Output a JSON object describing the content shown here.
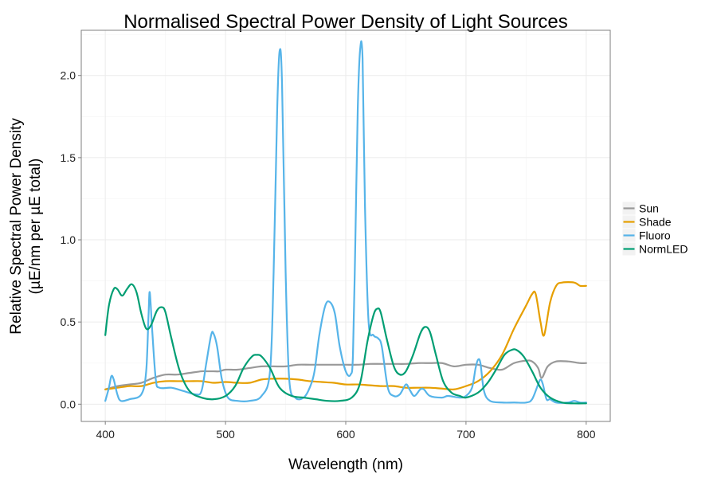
{
  "chart_data": {
    "type": "line",
    "title": "Normalised Spectral Power Density of Light Sources",
    "xlabel": "Wavelength (nm)",
    "ylabel_line1": "Relative Spectral Power Density",
    "ylabel_line2": "(µE/nm per µE total)",
    "xlim": [
      380,
      820
    ],
    "ylim": [
      -0.105,
      2.275
    ],
    "x_ticks": [
      400,
      500,
      600,
      700,
      800
    ],
    "y_ticks": [
      0.0,
      0.5,
      1.0,
      1.5,
      2.0
    ],
    "x_tick_labels": [
      "400",
      "500",
      "600",
      "700",
      "800"
    ],
    "y_tick_labels": [
      "0.0",
      "0.5",
      "1.0",
      "1.5",
      "2.0"
    ],
    "grid": true,
    "legend_position": "right",
    "series": [
      {
        "name": "Sun",
        "color": "#999999",
        "points": [
          [
            400,
            0.09
          ],
          [
            410,
            0.11
          ],
          [
            420,
            0.12
          ],
          [
            430,
            0.13
          ],
          [
            440,
            0.16
          ],
          [
            450,
            0.18
          ],
          [
            460,
            0.18
          ],
          [
            470,
            0.19
          ],
          [
            480,
            0.2
          ],
          [
            485,
            0.2
          ],
          [
            490,
            0.2
          ],
          [
            495,
            0.2
          ],
          [
            500,
            0.21
          ],
          [
            510,
            0.21
          ],
          [
            520,
            0.22
          ],
          [
            530,
            0.23
          ],
          [
            540,
            0.23
          ],
          [
            550,
            0.23
          ],
          [
            560,
            0.24
          ],
          [
            570,
            0.24
          ],
          [
            580,
            0.24
          ],
          [
            590,
            0.24
          ],
          [
            600,
            0.24
          ],
          [
            610,
            0.24
          ],
          [
            620,
            0.245
          ],
          [
            630,
            0.245
          ],
          [
            640,
            0.245
          ],
          [
            650,
            0.245
          ],
          [
            660,
            0.25
          ],
          [
            670,
            0.25
          ],
          [
            680,
            0.25
          ],
          [
            690,
            0.23
          ],
          [
            700,
            0.24
          ],
          [
            710,
            0.24
          ],
          [
            720,
            0.22
          ],
          [
            730,
            0.21
          ],
          [
            740,
            0.25
          ],
          [
            750,
            0.265
          ],
          [
            755,
            0.26
          ],
          [
            760,
            0.22
          ],
          [
            763,
            0.16
          ],
          [
            768,
            0.23
          ],
          [
            775,
            0.26
          ],
          [
            785,
            0.26
          ],
          [
            795,
            0.25
          ],
          [
            800,
            0.25
          ]
        ]
      },
      {
        "name": "Shade",
        "color": "#E69F00",
        "points": [
          [
            400,
            0.09
          ],
          [
            410,
            0.1
          ],
          [
            420,
            0.11
          ],
          [
            430,
            0.11
          ],
          [
            440,
            0.13
          ],
          [
            450,
            0.14
          ],
          [
            460,
            0.14
          ],
          [
            470,
            0.14
          ],
          [
            480,
            0.14
          ],
          [
            490,
            0.13
          ],
          [
            500,
            0.135
          ],
          [
            510,
            0.13
          ],
          [
            520,
            0.13
          ],
          [
            530,
            0.15
          ],
          [
            540,
            0.155
          ],
          [
            550,
            0.155
          ],
          [
            560,
            0.15
          ],
          [
            570,
            0.14
          ],
          [
            580,
            0.135
          ],
          [
            590,
            0.13
          ],
          [
            600,
            0.12
          ],
          [
            610,
            0.12
          ],
          [
            620,
            0.115
          ],
          [
            630,
            0.11
          ],
          [
            640,
            0.11
          ],
          [
            650,
            0.1
          ],
          [
            660,
            0.1
          ],
          [
            670,
            0.1
          ],
          [
            680,
            0.095
          ],
          [
            690,
            0.09
          ],
          [
            700,
            0.11
          ],
          [
            710,
            0.14
          ],
          [
            720,
            0.2
          ],
          [
            730,
            0.3
          ],
          [
            740,
            0.46
          ],
          [
            750,
            0.6
          ],
          [
            755,
            0.67
          ],
          [
            758,
            0.67
          ],
          [
            762,
            0.5
          ],
          [
            765,
            0.42
          ],
          [
            770,
            0.62
          ],
          [
            775,
            0.72
          ],
          [
            780,
            0.74
          ],
          [
            790,
            0.74
          ],
          [
            795,
            0.72
          ],
          [
            800,
            0.72
          ]
        ]
      },
      {
        "name": "Fluoro",
        "color": "#56B4E9",
        "points": [
          [
            400,
            0.02
          ],
          [
            403,
            0.1
          ],
          [
            405,
            0.17
          ],
          [
            407,
            0.15
          ],
          [
            410,
            0.06
          ],
          [
            413,
            0.02
          ],
          [
            420,
            0.03
          ],
          [
            430,
            0.06
          ],
          [
            434,
            0.2
          ],
          [
            436,
            0.55
          ],
          [
            437,
            0.68
          ],
          [
            439,
            0.45
          ],
          [
            442,
            0.15
          ],
          [
            445,
            0.1
          ],
          [
            455,
            0.1
          ],
          [
            465,
            0.08
          ],
          [
            475,
            0.06
          ],
          [
            480,
            0.08
          ],
          [
            484,
            0.25
          ],
          [
            488,
            0.42
          ],
          [
            490,
            0.43
          ],
          [
            493,
            0.35
          ],
          [
            497,
            0.15
          ],
          [
            502,
            0.04
          ],
          [
            510,
            0.02
          ],
          [
            520,
            0.02
          ],
          [
            530,
            0.05
          ],
          [
            537,
            0.2
          ],
          [
            540,
            0.8
          ],
          [
            543,
            1.8
          ],
          [
            545,
            2.15
          ],
          [
            547,
            1.95
          ],
          [
            550,
            0.8
          ],
          [
            553,
            0.15
          ],
          [
            558,
            0.04
          ],
          [
            565,
            0.04
          ],
          [
            570,
            0.1
          ],
          [
            574,
            0.2
          ],
          [
            578,
            0.42
          ],
          [
            583,
            0.6
          ],
          [
            587,
            0.62
          ],
          [
            591,
            0.55
          ],
          [
            595,
            0.35
          ],
          [
            600,
            0.2
          ],
          [
            604,
            0.18
          ],
          [
            606,
            0.3
          ],
          [
            608,
            1.0
          ],
          [
            610,
            1.8
          ],
          [
            612,
            2.16
          ],
          [
            614,
            2.1
          ],
          [
            616,
            1.2
          ],
          [
            619,
            0.5
          ],
          [
            623,
            0.42
          ],
          [
            627,
            0.4
          ],
          [
            630,
            0.35
          ],
          [
            635,
            0.1
          ],
          [
            640,
            0.05
          ],
          [
            645,
            0.06
          ],
          [
            650,
            0.12
          ],
          [
            653,
            0.09
          ],
          [
            657,
            0.05
          ],
          [
            662,
            0.09
          ],
          [
            665,
            0.09
          ],
          [
            670,
            0.05
          ],
          [
            680,
            0.04
          ],
          [
            685,
            0.05
          ],
          [
            695,
            0.04
          ],
          [
            700,
            0.05
          ],
          [
            705,
            0.1
          ],
          [
            708,
            0.22
          ],
          [
            710,
            0.27
          ],
          [
            712,
            0.25
          ],
          [
            715,
            0.08
          ],
          [
            720,
            0.02
          ],
          [
            730,
            0.01
          ],
          [
            740,
            0.01
          ],
          [
            750,
            0.01
          ],
          [
            755,
            0.03
          ],
          [
            760,
            0.12
          ],
          [
            762,
            0.15
          ],
          [
            764,
            0.12
          ],
          [
            767,
            0.03
          ],
          [
            770,
            0.03
          ],
          [
            775,
            0.01
          ],
          [
            785,
            0.01
          ],
          [
            790,
            0.02
          ],
          [
            795,
            0.01
          ],
          [
            800,
            0.01
          ]
        ]
      },
      {
        "name": "NormLED",
        "color": "#009E73",
        "points": [
          [
            400,
            0.42
          ],
          [
            403,
            0.6
          ],
          [
            407,
            0.7
          ],
          [
            410,
            0.7
          ],
          [
            414,
            0.66
          ],
          [
            418,
            0.7
          ],
          [
            422,
            0.73
          ],
          [
            426,
            0.68
          ],
          [
            430,
            0.55
          ],
          [
            434,
            0.46
          ],
          [
            438,
            0.48
          ],
          [
            443,
            0.57
          ],
          [
            447,
            0.59
          ],
          [
            450,
            0.56
          ],
          [
            455,
            0.4
          ],
          [
            462,
            0.2
          ],
          [
            470,
            0.08
          ],
          [
            480,
            0.04
          ],
          [
            490,
            0.03
          ],
          [
            500,
            0.05
          ],
          [
            508,
            0.11
          ],
          [
            515,
            0.22
          ],
          [
            522,
            0.29
          ],
          [
            526,
            0.3
          ],
          [
            530,
            0.29
          ],
          [
            537,
            0.22
          ],
          [
            545,
            0.1
          ],
          [
            555,
            0.05
          ],
          [
            565,
            0.04
          ],
          [
            575,
            0.03
          ],
          [
            585,
            0.02
          ],
          [
            595,
            0.02
          ],
          [
            605,
            0.04
          ],
          [
            612,
            0.13
          ],
          [
            618,
            0.38
          ],
          [
            623,
            0.54
          ],
          [
            626,
            0.58
          ],
          [
            629,
            0.56
          ],
          [
            634,
            0.4
          ],
          [
            640,
            0.23
          ],
          [
            645,
            0.18
          ],
          [
            650,
            0.2
          ],
          [
            656,
            0.3
          ],
          [
            662,
            0.43
          ],
          [
            666,
            0.47
          ],
          [
            670,
            0.44
          ],
          [
            675,
            0.3
          ],
          [
            681,
            0.14
          ],
          [
            688,
            0.07
          ],
          [
            695,
            0.05
          ],
          [
            700,
            0.04
          ],
          [
            710,
            0.07
          ],
          [
            718,
            0.13
          ],
          [
            725,
            0.21
          ],
          [
            732,
            0.3
          ],
          [
            738,
            0.33
          ],
          [
            742,
            0.33
          ],
          [
            748,
            0.29
          ],
          [
            755,
            0.2
          ],
          [
            762,
            0.1
          ],
          [
            770,
            0.04
          ],
          [
            780,
            0.01
          ],
          [
            790,
            0.005
          ],
          [
            800,
            0.005
          ]
        ]
      }
    ]
  }
}
